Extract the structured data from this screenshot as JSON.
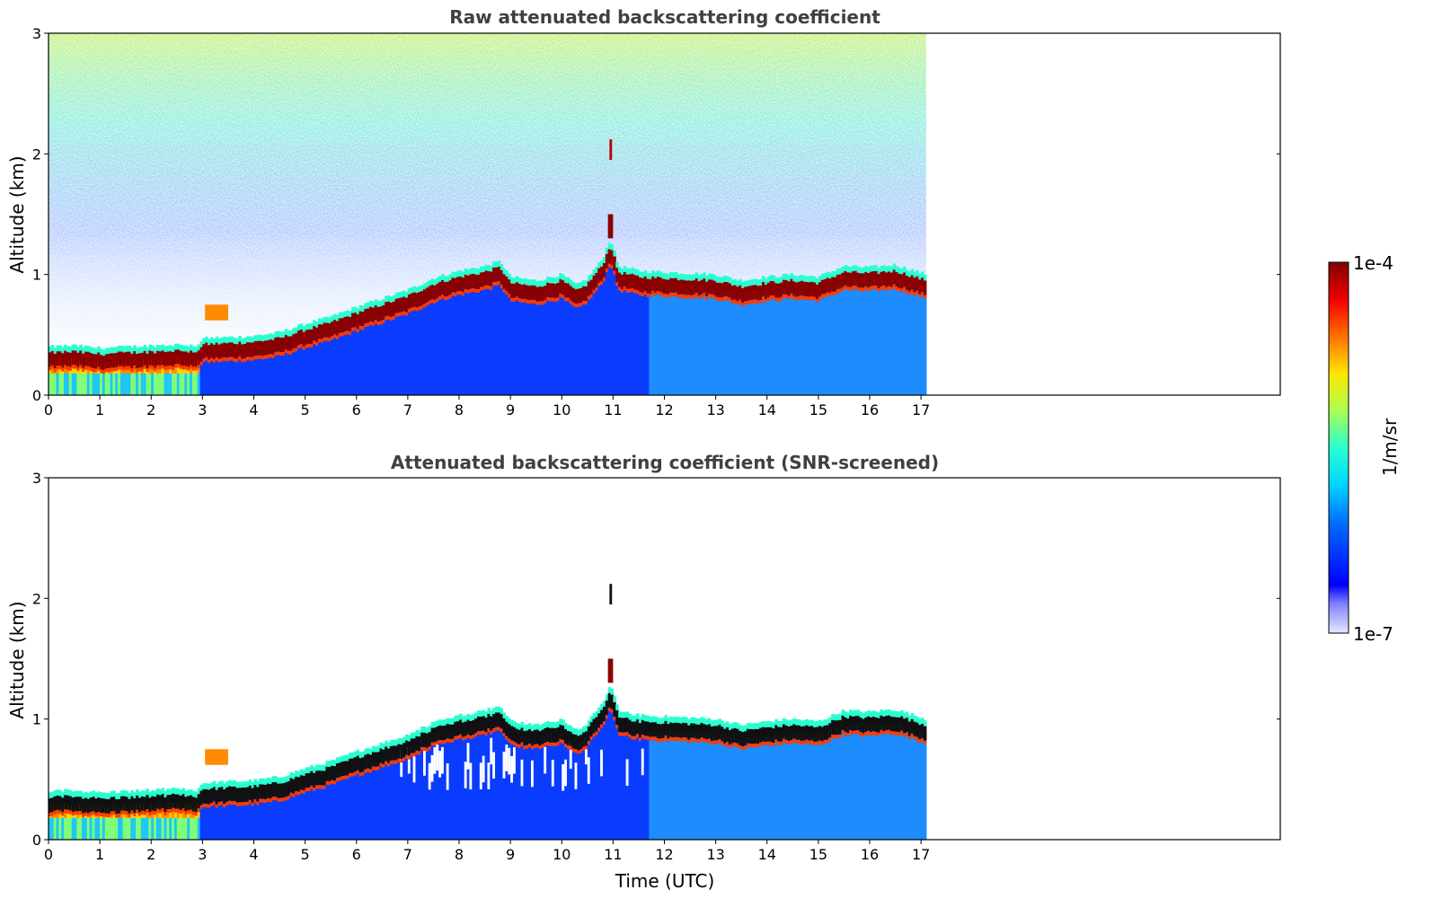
{
  "chart_data": [
    {
      "type": "heatmap",
      "title": "Raw attenuated backscattering coefficient",
      "xlabel": "",
      "ylabel": "Altitude (km)",
      "xlim": [
        0,
        24
      ],
      "ylim": [
        0,
        3
      ],
      "x_ticks": [
        0,
        1,
        2,
        3,
        4,
        5,
        6,
        7,
        8,
        9,
        10,
        11,
        12,
        13,
        14,
        15,
        16,
        17
      ],
      "y_ticks": [
        0,
        1,
        2,
        3
      ],
      "data_extent_x": [
        0,
        17.1
      ],
      "layer_top_km": {
        "time": [
          0,
          0.5,
          1,
          1.5,
          2,
          2.5,
          2.9,
          3.0,
          3.5,
          4,
          4.5,
          5,
          5.5,
          6,
          6.5,
          7,
          7.5,
          8,
          8.5,
          8.8,
          9,
          9.5,
          10,
          10.3,
          10.5,
          10.8,
          10.95,
          11.1,
          11.5,
          12,
          12.5,
          13,
          13.5,
          14,
          14.5,
          15,
          15.5,
          16,
          16.5,
          17.1
        ],
        "altitude": [
          0.35,
          0.36,
          0.34,
          0.35,
          0.36,
          0.37,
          0.36,
          0.42,
          0.43,
          0.44,
          0.47,
          0.54,
          0.6,
          0.68,
          0.75,
          0.82,
          0.92,
          0.98,
          1.02,
          1.06,
          0.93,
          0.9,
          0.95,
          0.86,
          0.92,
          1.08,
          1.25,
          1.02,
          0.98,
          0.97,
          0.96,
          0.95,
          0.9,
          0.93,
          0.95,
          0.93,
          1.02,
          1.01,
          1.03,
          0.95
        ]
      },
      "colorbar": {
        "label": "1/m/sr",
        "min_label": "1e-7",
        "max_label": "1e-4",
        "colormap": "jet",
        "scale": "log"
      },
      "grid": false
    },
    {
      "type": "heatmap",
      "title": "Attenuated backscattering coefficient (SNR-screened)",
      "xlabel": "Time (UTC)",
      "ylabel": "Altitude (km)",
      "xlim": [
        0,
        24
      ],
      "ylim": [
        0,
        3
      ],
      "x_ticks": [
        0,
        1,
        2,
        3,
        4,
        5,
        6,
        7,
        8,
        9,
        10,
        11,
        12,
        13,
        14,
        15,
        16,
        17
      ],
      "y_ticks": [
        0,
        1,
        2,
        3
      ],
      "data_extent_x": [
        0,
        17.1
      ],
      "colorbar": {
        "label": "1/m/sr",
        "min_label": "1e-7",
        "max_label": "1e-4",
        "colormap": "jet",
        "scale": "log"
      },
      "grid": false
    }
  ]
}
